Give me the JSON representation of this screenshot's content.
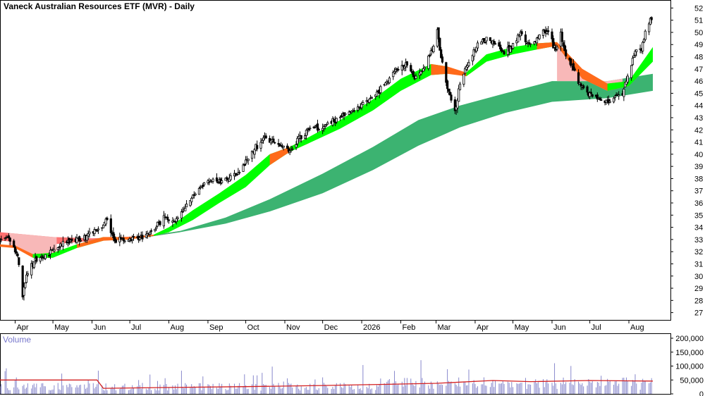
{
  "chart_data": {
    "type": "candlestick",
    "title": "Vaneck Australian Resources ETF (MVR) - Daily",
    "volume_title": "Volume",
    "colors": {
      "background": "#ffffff",
      "candle": "#000000",
      "fast_ribbon_up": "#00ff00",
      "fast_ribbon_down": "#ff6a1a",
      "slow_ribbon_up": "#3cb371",
      "slow_ribbon_down": "#ff7070",
      "fade_band": "#f8b8b8",
      "volume_bar": "#8888cc",
      "volume_avg": "#d42020"
    },
    "price_axis": {
      "min": 26.4,
      "max": 52.6,
      "ticks": [
        27,
        28,
        29,
        30,
        31,
        32,
        33,
        34,
        35,
        36,
        37,
        38,
        39,
        40,
        41,
        42,
        43,
        44,
        45,
        46,
        47,
        48,
        49,
        50,
        51,
        52
      ]
    },
    "volume_axis": {
      "min": 0,
      "max": 200000,
      "ticks": [
        0,
        50000,
        100000,
        150000,
        200000
      ],
      "tick_labels": [
        "0",
        "50,000",
        "100,000",
        "150,000",
        "200,000"
      ]
    },
    "time_axis": {
      "start": "2025-03-20",
      "end": "2026-08-20",
      "labels": [
        {
          "date": "2025-04-01",
          "label": "Apr"
        },
        {
          "date": "2025-05-01",
          "label": "May"
        },
        {
          "date": "2025-06-01",
          "label": "Jun"
        },
        {
          "date": "2025-07-01",
          "label": "Jul"
        },
        {
          "date": "2025-08-01",
          "label": "Aug"
        },
        {
          "date": "2025-09-01",
          "label": "Sep"
        },
        {
          "date": "2025-10-01",
          "label": "Oct"
        },
        {
          "date": "2025-11-01",
          "label": "Nov"
        },
        {
          "date": "2025-12-01",
          "label": "Dec"
        },
        {
          "date": "2026-01-01",
          "label": "2026"
        },
        {
          "date": "2026-02-01",
          "label": "Feb"
        },
        {
          "date": "2026-03-01",
          "label": "Mar"
        },
        {
          "date": "2026-04-01",
          "label": "Apr"
        },
        {
          "date": "2026-05-01",
          "label": "May"
        },
        {
          "date": "2026-06-01",
          "label": "Jun"
        },
        {
          "date": "2026-07-01",
          "label": "Jul"
        },
        {
          "date": "2026-08-01",
          "label": "Aug"
        }
      ]
    },
    "price_path": [
      [
        "2025-03-20",
        33.0
      ],
      [
        "2025-03-27",
        33.1
      ],
      [
        "2025-04-03",
        31.6
      ],
      [
        "2025-04-07",
        28.2
      ],
      [
        "2025-04-10",
        30.2
      ],
      [
        "2025-04-17",
        31.2
      ],
      [
        "2025-04-28",
        31.8
      ],
      [
        "2025-05-06",
        32.6
      ],
      [
        "2025-05-15",
        32.8
      ],
      [
        "2025-05-27",
        33.2
      ],
      [
        "2025-06-03",
        33.7
      ],
      [
        "2025-06-10",
        34.2
      ],
      [
        "2025-06-13",
        34.7
      ],
      [
        "2025-06-18",
        33.0
      ],
      [
        "2025-06-27",
        33.0
      ],
      [
        "2025-07-08",
        33.1
      ],
      [
        "2025-07-18",
        33.6
      ],
      [
        "2025-07-25",
        34.4
      ],
      [
        "2025-07-30",
        35.0
      ],
      [
        "2025-08-04",
        34.3
      ],
      [
        "2025-08-12",
        35.2
      ],
      [
        "2025-08-20",
        36.6
      ],
      [
        "2025-08-28",
        37.5
      ],
      [
        "2025-09-04",
        37.9
      ],
      [
        "2025-09-11",
        37.8
      ],
      [
        "2025-09-18",
        38.0
      ],
      [
        "2025-09-25",
        38.4
      ],
      [
        "2025-10-02",
        39.5
      ],
      [
        "2025-10-09",
        40.6
      ],
      [
        "2025-10-16",
        41.4
      ],
      [
        "2025-10-23",
        41.0
      ],
      [
        "2025-10-30",
        40.6
      ],
      [
        "2025-11-06",
        40.4
      ],
      [
        "2025-11-13",
        41.4
      ],
      [
        "2025-11-20",
        42.0
      ],
      [
        "2025-11-27",
        42.2
      ],
      [
        "2025-12-04",
        42.5
      ],
      [
        "2025-12-11",
        42.8
      ],
      [
        "2025-12-18",
        43.3
      ],
      [
        "2025-12-24",
        43.6
      ],
      [
        "2025-12-31",
        44.0
      ],
      [
        "2026-01-08",
        44.5
      ],
      [
        "2026-01-15",
        45.2
      ],
      [
        "2026-01-22",
        46.0
      ],
      [
        "2026-01-29",
        47.0
      ],
      [
        "2026-02-05",
        47.4
      ],
      [
        "2026-02-12",
        46.3
      ],
      [
        "2026-02-19",
        46.8
      ],
      [
        "2026-02-26",
        48.7
      ],
      [
        "2026-03-02",
        50.2
      ],
      [
        "2026-03-05",
        48.0
      ],
      [
        "2026-03-10",
        45.4
      ],
      [
        "2026-03-16",
        43.6
      ],
      [
        "2026-03-20",
        45.8
      ],
      [
        "2026-03-27",
        47.6
      ],
      [
        "2026-04-03",
        49.1
      ],
      [
        "2026-04-10",
        49.4
      ],
      [
        "2026-04-17",
        49.0
      ],
      [
        "2026-04-24",
        48.3
      ],
      [
        "2026-04-30",
        48.8
      ],
      [
        "2026-05-07",
        50.0
      ],
      [
        "2026-05-14",
        48.9
      ],
      [
        "2026-05-21",
        49.6
      ],
      [
        "2026-05-28",
        50.2
      ],
      [
        "2026-06-04",
        48.5
      ],
      [
        "2026-06-08",
        49.8
      ],
      [
        "2026-06-12",
        48.0
      ],
      [
        "2026-06-18",
        47.0
      ],
      [
        "2026-06-24",
        45.6
      ],
      [
        "2026-06-30",
        45.0
      ],
      [
        "2026-07-06",
        44.8
      ],
      [
        "2026-07-13",
        44.3
      ],
      [
        "2026-07-20",
        44.6
      ],
      [
        "2026-07-27",
        45.0
      ],
      [
        "2026-08-03",
        47.5
      ],
      [
        "2026-08-07",
        48.8
      ],
      [
        "2026-08-11",
        48.6
      ],
      [
        "2026-08-14",
        50.0
      ],
      [
        "2026-08-19",
        51.2
      ]
    ],
    "fast_ribbon": [
      {
        "date": "2025-03-20",
        "upper": 32.6,
        "lower": 32.4,
        "trend": "down"
      },
      {
        "date": "2025-04-01",
        "upper": 32.5,
        "lower": 32.3,
        "trend": "down"
      },
      {
        "date": "2025-04-15",
        "upper": 31.8,
        "lower": 31.5,
        "trend": "down"
      },
      {
        "date": "2025-05-01",
        "upper": 31.9,
        "lower": 31.5,
        "trend": "up"
      },
      {
        "date": "2025-05-20",
        "upper": 32.6,
        "lower": 32.3,
        "trend": "up"
      },
      {
        "date": "2025-06-10",
        "upper": 33.2,
        "lower": 32.9,
        "trend": "down"
      },
      {
        "date": "2025-07-01",
        "upper": 33.2,
        "lower": 33.0,
        "trend": "down"
      },
      {
        "date": "2025-07-20",
        "upper": 33.4,
        "lower": 33.3,
        "trend": "down"
      },
      {
        "date": "2025-08-01",
        "upper": 34.0,
        "lower": 33.6,
        "trend": "up"
      },
      {
        "date": "2025-08-20",
        "upper": 35.4,
        "lower": 34.6,
        "trend": "up"
      },
      {
        "date": "2025-09-10",
        "upper": 36.8,
        "lower": 36.0,
        "trend": "up"
      },
      {
        "date": "2025-10-01",
        "upper": 38.3,
        "lower": 37.3,
        "trend": "up"
      },
      {
        "date": "2025-10-20",
        "upper": 40.0,
        "lower": 39.1,
        "trend": "up"
      },
      {
        "date": "2025-11-05",
        "upper": 40.6,
        "lower": 40.2,
        "trend": "down"
      },
      {
        "date": "2025-11-20",
        "upper": 41.4,
        "lower": 40.9,
        "trend": "up"
      },
      {
        "date": "2025-12-15",
        "upper": 42.8,
        "lower": 42.1,
        "trend": "up"
      },
      {
        "date": "2026-01-10",
        "upper": 44.5,
        "lower": 43.6,
        "trend": "up"
      },
      {
        "date": "2026-02-01",
        "upper": 46.2,
        "lower": 45.2,
        "trend": "up"
      },
      {
        "date": "2026-02-25",
        "upper": 47.4,
        "lower": 46.5,
        "trend": "up"
      },
      {
        "date": "2026-03-10",
        "upper": 47.2,
        "lower": 46.6,
        "trend": "down"
      },
      {
        "date": "2026-03-25",
        "upper": 46.7,
        "lower": 46.4,
        "trend": "down"
      },
      {
        "date": "2026-04-10",
        "upper": 48.2,
        "lower": 47.6,
        "trend": "up"
      },
      {
        "date": "2026-05-01",
        "upper": 48.8,
        "lower": 48.2,
        "trend": "up"
      },
      {
        "date": "2026-05-20",
        "upper": 49.1,
        "lower": 48.6,
        "trend": "up"
      },
      {
        "date": "2026-06-05",
        "upper": 49.2,
        "lower": 48.9,
        "trend": "down"
      },
      {
        "date": "2026-06-25",
        "upper": 47.0,
        "lower": 46.2,
        "trend": "down"
      },
      {
        "date": "2026-07-15",
        "upper": 45.8,
        "lower": 45.2,
        "trend": "down"
      },
      {
        "date": "2026-08-01",
        "upper": 46.0,
        "lower": 45.6,
        "trend": "up"
      },
      {
        "date": "2026-08-20",
        "upper": 48.8,
        "lower": 47.6,
        "trend": "up"
      }
    ],
    "slow_ribbon": [
      {
        "date": "2025-03-20",
        "upper": 33.6,
        "lower": 32.9,
        "trend": "down"
      },
      {
        "date": "2025-05-01",
        "upper": 33.2,
        "lower": 32.6,
        "trend": "down"
      },
      {
        "date": "2025-06-01",
        "upper": 33.1,
        "lower": 32.9,
        "trend": "down"
      },
      {
        "date": "2025-07-15",
        "upper": 33.3,
        "lower": 33.2,
        "trend": "down"
      },
      {
        "date": "2025-08-10",
        "upper": 33.7,
        "lower": 33.6,
        "trend": "up"
      },
      {
        "date": "2025-09-15",
        "upper": 34.8,
        "lower": 34.3,
        "trend": "up"
      },
      {
        "date": "2025-10-20",
        "upper": 36.3,
        "lower": 35.3,
        "trend": "up"
      },
      {
        "date": "2025-12-01",
        "upper": 38.4,
        "lower": 36.8,
        "trend": "up"
      },
      {
        "date": "2026-01-10",
        "upper": 40.6,
        "lower": 38.7,
        "trend": "up"
      },
      {
        "date": "2026-02-15",
        "upper": 42.8,
        "lower": 40.7,
        "trend": "up"
      },
      {
        "date": "2026-03-20",
        "upper": 44.0,
        "lower": 42.2,
        "trend": "up"
      },
      {
        "date": "2026-04-25",
        "upper": 45.0,
        "lower": 43.4,
        "trend": "up"
      },
      {
        "date": "2026-06-01",
        "upper": 46.0,
        "lower": 44.3,
        "trend": "up"
      },
      {
        "date": "2026-07-15",
        "upper": 46.0,
        "lower": 44.6,
        "trend": "up"
      },
      {
        "date": "2026-08-20",
        "upper": 46.6,
        "lower": 45.2,
        "trend": "up"
      }
    ],
    "volume_average": [
      [
        "2025-03-20",
        50000
      ],
      [
        "2025-04-20",
        50000
      ],
      [
        "2025-05-20",
        50000
      ],
      [
        "2025-06-05",
        50000
      ],
      [
        "2025-06-10",
        20000
      ],
      [
        "2025-08-01",
        23000
      ],
      [
        "2025-10-01",
        26000
      ],
      [
        "2025-12-01",
        30000
      ],
      [
        "2026-01-15",
        34000
      ],
      [
        "2026-03-01",
        38000
      ],
      [
        "2026-04-15",
        48000
      ],
      [
        "2026-05-15",
        44000
      ],
      [
        "2026-07-01",
        48000
      ],
      [
        "2026-08-20",
        46000
      ]
    ]
  }
}
